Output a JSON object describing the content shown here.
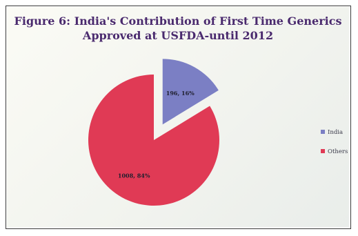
{
  "chart_data": {
    "type": "pie",
    "title": "Figure 6: India's Contribution of First Time Generics Approved at USFDA-until 2012",
    "title_lines": [
      "Figure 6: India's Contribution of First Time Generics",
      "Approved at USFDA-until 2012"
    ],
    "slices": [
      {
        "name": "India",
        "value": 196,
        "percent": 16,
        "label": "196, 16%",
        "color": "#7b7fc4",
        "exploded": true
      },
      {
        "name": "Others countries",
        "value": 1008,
        "percent": 84,
        "label": "1008, 84%",
        "color": "#e03a55",
        "exploded": false
      }
    ],
    "legend_entries": [
      "India",
      "Others co"
    ],
    "legend_position": "right"
  }
}
